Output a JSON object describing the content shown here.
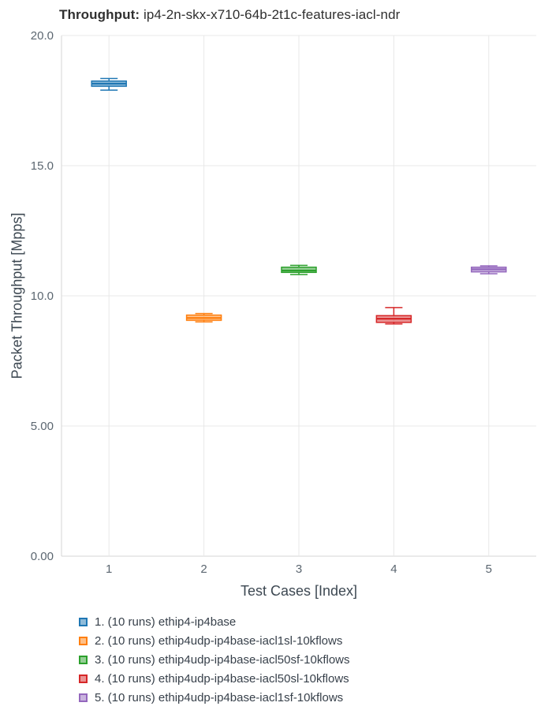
{
  "chart_data": {
    "type": "box",
    "title": "Throughput: ip4-2n-skx-x710-64b-2t1c-features-iacl-ndr",
    "title_bold": "Throughput:",
    "title_rest": " ip4-2n-skx-x710-64b-2t1c-features-iacl-ndr",
    "xlabel": "Test Cases [Index]",
    "ylabel": "Packet Throughput [Mpps]",
    "ylim": [
      0,
      20
    ],
    "grid": true,
    "legend_position": "bottom-left",
    "yticks": [
      {
        "v": 0,
        "label": "0.00"
      },
      {
        "v": 5,
        "label": "5.00"
      },
      {
        "v": 10,
        "label": "10.0"
      },
      {
        "v": 15,
        "label": "15.0"
      },
      {
        "v": 20,
        "label": "20.0"
      }
    ],
    "categories": [
      "1",
      "2",
      "3",
      "4",
      "5"
    ],
    "series": [
      {
        "name": "1. (10 runs) ethip4-ip4base",
        "color": "#1f77b4",
        "low": 17.9,
        "q1": 18.05,
        "median": 18.15,
        "q3": 18.25,
        "high": 18.35
      },
      {
        "name": "2. (10 runs) ethip4udp-ip4base-iacl1sl-10kflows",
        "color": "#ff7f0e",
        "low": 9.0,
        "q1": 9.06,
        "median": 9.15,
        "q3": 9.26,
        "high": 9.32
      },
      {
        "name": "3. (10 runs) ethip4udp-ip4base-iacl50sf-10kflows",
        "color": "#2ca02c",
        "low": 10.82,
        "q1": 10.9,
        "median": 10.97,
        "q3": 11.1,
        "high": 11.17
      },
      {
        "name": "4. (10 runs) ethip4udp-ip4base-iacl50sl-10kflows",
        "color": "#d62728",
        "low": 8.92,
        "q1": 8.98,
        "median": 9.12,
        "q3": 9.24,
        "high": 9.55
      },
      {
        "name": "5. (10 runs) ethip4udp-ip4base-iacl1sf-10kflows",
        "color": "#9467bd",
        "low": 10.85,
        "q1": 10.92,
        "median": 11.02,
        "q3": 11.1,
        "high": 11.15
      }
    ]
  }
}
